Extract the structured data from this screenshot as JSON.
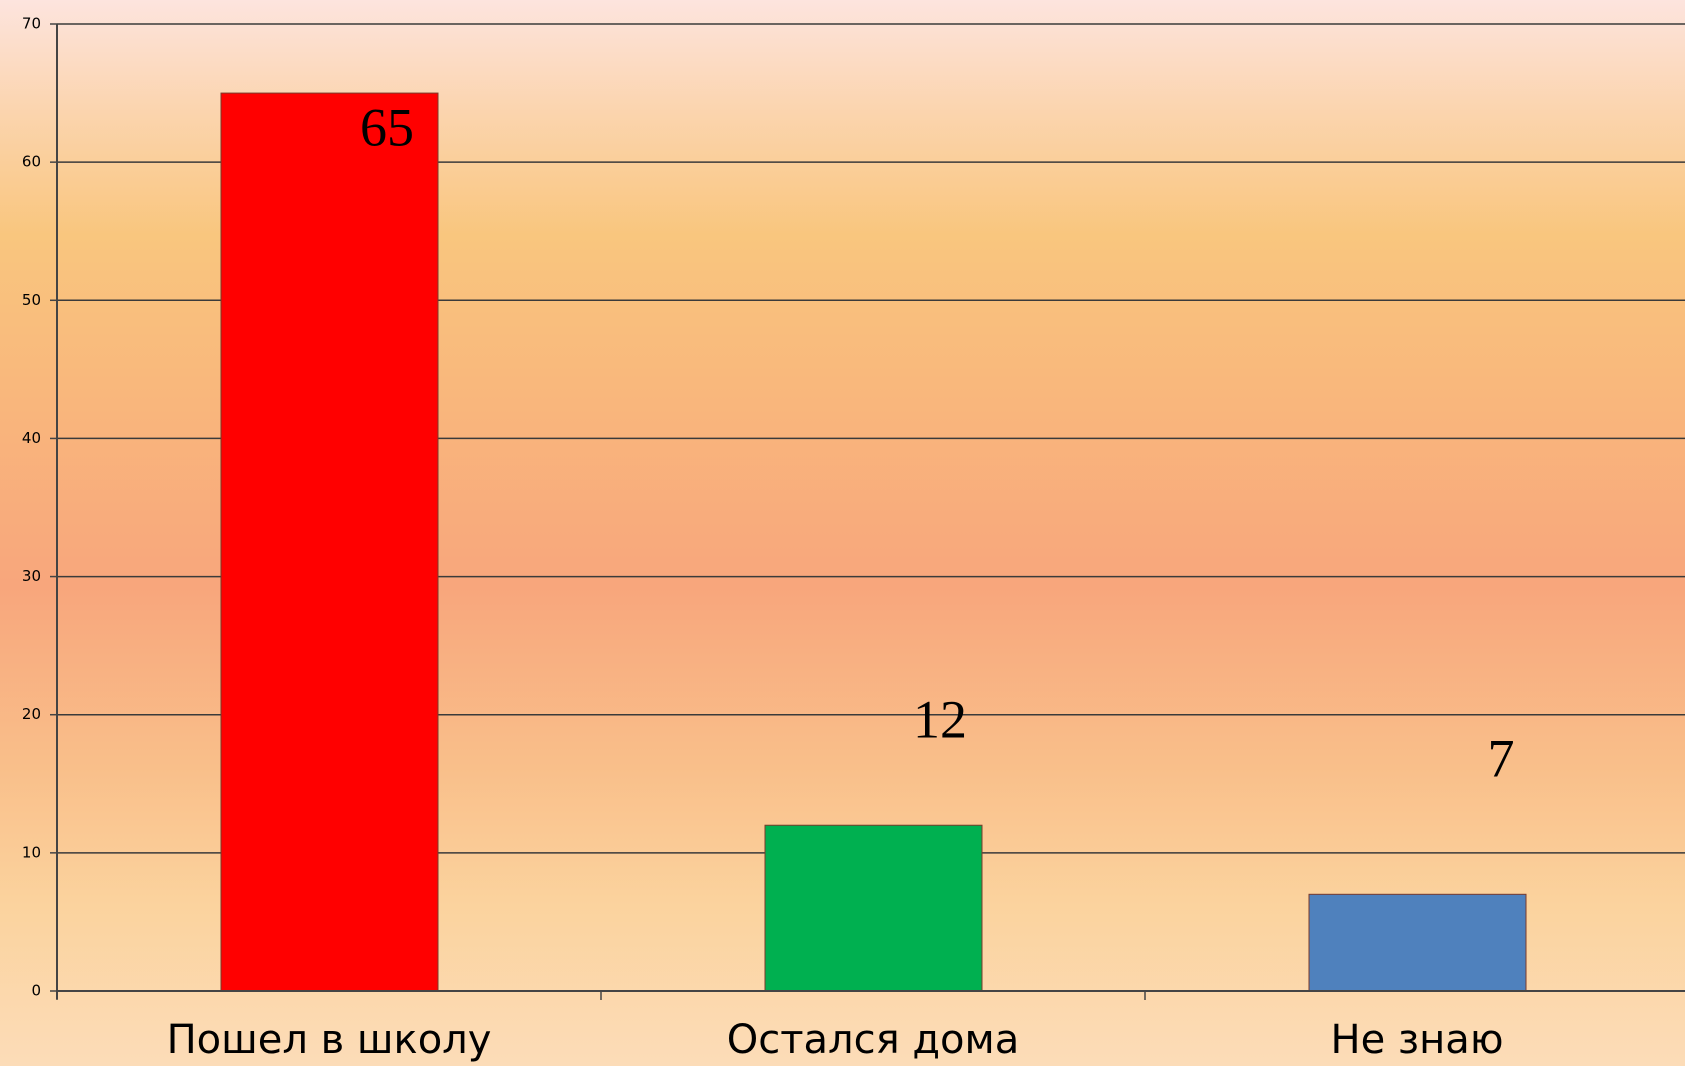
{
  "chart_data": {
    "type": "bar",
    "categories": [
      "Пошел в школу",
      "Остался дома",
      "Не знаю"
    ],
    "values": [
      65,
      12,
      7
    ],
    "colors": [
      "#ff0000",
      "#00b050",
      "#4f81bd"
    ],
    "ylim": [
      0,
      70
    ],
    "yticks": [
      0,
      10,
      20,
      30,
      40,
      50,
      60,
      70
    ],
    "grid": true
  }
}
